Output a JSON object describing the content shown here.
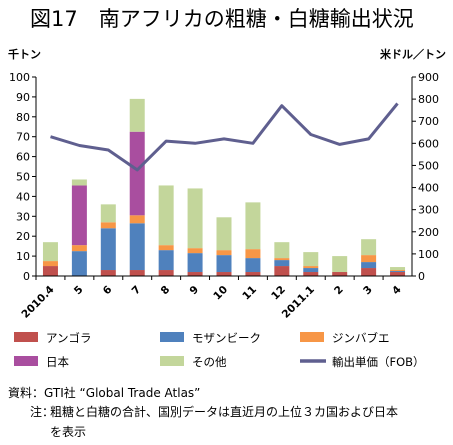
{
  "title": "図17　南アフリカの粗糖・白糖輸出状況",
  "chart_data": {
    "type": "bar",
    "stacked": true,
    "categories": [
      "2010.4",
      "5",
      "6",
      "7",
      "8",
      "9",
      "10",
      "11",
      "12",
      "2011.1",
      "2",
      "3",
      "4"
    ],
    "series": [
      {
        "name": "アンゴラ",
        "color": "#c0504d",
        "values": [
          5,
          0,
          3,
          3,
          3,
          2,
          2,
          2,
          5,
          2,
          2,
          4,
          2
        ]
      },
      {
        "name": "モザンビーク",
        "color": "#4f81bd",
        "values": [
          0,
          12.5,
          21,
          23.5,
          10,
          9.5,
          8.5,
          7,
          3,
          2,
          0,
          3,
          0.5
        ]
      },
      {
        "name": "ジンバブエ",
        "color": "#f79646",
        "values": [
          2.5,
          3,
          3,
          4,
          2.5,
          2.5,
          2.5,
          4.5,
          1,
          1,
          0,
          3.5,
          0.5
        ]
      },
      {
        "name": "日本",
        "color": "#a94e9f",
        "values": [
          0,
          30,
          0,
          42,
          0,
          0,
          0,
          0,
          0,
          0,
          0,
          0,
          0
        ]
      },
      {
        "name": "その他",
        "color": "#c3d69b",
        "values": [
          9.5,
          3,
          9,
          16.5,
          30,
          30,
          16.5,
          23.5,
          8,
          7,
          8,
          8,
          1.5
        ]
      }
    ],
    "line_series": {
      "name": "輸出単価（FOB）",
      "color": "#5f5f8f",
      "values": [
        630,
        590,
        570,
        480,
        610,
        600,
        620,
        600,
        770,
        640,
        595,
        620,
        780
      ]
    },
    "ylabel_left": "千トン",
    "ylabel_right": "米ドル／トン",
    "ylim_left": [
      0,
      100
    ],
    "yticks_left": [
      0,
      10,
      20,
      30,
      40,
      50,
      60,
      70,
      80,
      90,
      100
    ],
    "ylim_right": [
      0,
      900
    ],
    "yticks_right": [
      0,
      100,
      200,
      300,
      400,
      500,
      600,
      700,
      800,
      900
    ],
    "grid": false,
    "legend_position": "bottom"
  },
  "notes": {
    "source": "資料：GTI社 “Global Trade Atlas”",
    "note_label": "注：",
    "note_line1": "粗糖と白糖の合計、国別データは直近月の上位３カ国および日本",
    "note_line2": "を表示"
  }
}
